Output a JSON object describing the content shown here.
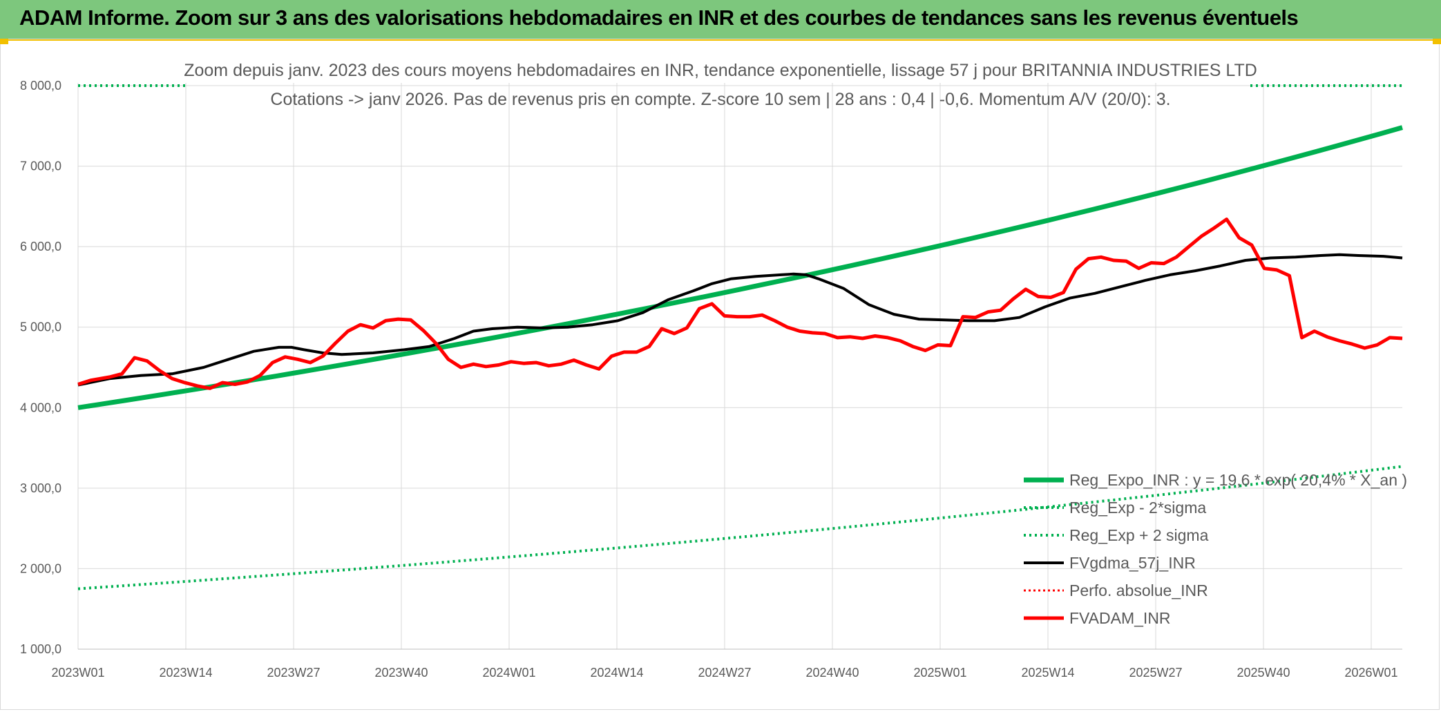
{
  "header": {
    "title": "ADAM Informe. Zoom sur 3 ans des valorisations hebdomadaires en INR et des courbes de tendances sans les revenus éventuels"
  },
  "colors": {
    "green": "#00b050",
    "red": "#ff0000",
    "black": "#000000",
    "banner": "#7dc77d",
    "accent": "#f2c000"
  },
  "chart_data": {
    "type": "line",
    "title_line1": "Zoom depuis janv. 2023 des cours moyens hebdomadaires en INR, tendance exponentielle, lissage 57 j pour BRITANNIA INDUSTRIES LTD",
    "title_line2": "Cotations -> janv 2026. Pas de revenus pris en compte. Z-score 10 sem | 28 ans : 0,4 | -0,6. Momentum A/V (20/0): 3.",
    "ylim": [
      1000,
      8000
    ],
    "yticks": [
      "8 000,0",
      "7 000,0",
      "6 000,0",
      "5 000,0",
      "4 000,0",
      "3 000,0",
      "2 000,0",
      "1 000,0"
    ],
    "ytick_values": [
      8000,
      7000,
      6000,
      5000,
      4000,
      3000,
      2000,
      1000
    ],
    "x_count": 162,
    "xticks": [
      "2023W01",
      "2023W14",
      "2023W27",
      "2023W40",
      "2024W01",
      "2024W14",
      "2024W27",
      "2024W40",
      "2025W01",
      "2025W14",
      "2025W27",
      "2025W40",
      "2026W01"
    ],
    "xtick_positions": [
      0,
      13,
      26,
      39,
      52,
      65,
      78,
      91,
      104,
      117,
      130,
      143,
      156
    ],
    "series": [
      {
        "name": "Reg_Expo_INR : y = 19,6 * exp( 20,4% * X_an )",
        "style": "solid-thick-green",
        "start": 4000,
        "end": 7480
      },
      {
        "name": "Reg_Exp - 2*sigma",
        "style": "dotted-green",
        "start": 8000,
        "end": 8000
      },
      {
        "name": "Reg_Exp + 2 sigma",
        "style": "dotted-green",
        "start": 1750,
        "end": 3270
      },
      {
        "name": "FVgdma_57j_INR",
        "style": "solid-black",
        "points": [
          [
            0,
            4280
          ],
          [
            5,
            4360
          ],
          [
            10,
            4400
          ],
          [
            15,
            4420
          ],
          [
            20,
            4500
          ],
          [
            24,
            4600
          ],
          [
            28,
            4700
          ],
          [
            32,
            4750
          ],
          [
            34,
            4750
          ],
          [
            36,
            4720
          ],
          [
            39,
            4680
          ],
          [
            42,
            4660
          ],
          [
            47,
            4680
          ],
          [
            52,
            4720
          ],
          [
            56,
            4760
          ],
          [
            60,
            4860
          ],
          [
            63,
            4950
          ],
          [
            66,
            4980
          ],
          [
            70,
            5000
          ],
          [
            74,
            4990
          ],
          [
            78,
            5000
          ],
          [
            82,
            5030
          ],
          [
            86,
            5080
          ],
          [
            90,
            5180
          ],
          [
            94,
            5340
          ],
          [
            98,
            5450
          ],
          [
            101,
            5540
          ],
          [
            104,
            5600
          ],
          [
            108,
            5630
          ],
          [
            112,
            5650
          ],
          [
            114,
            5660
          ],
          [
            116,
            5650
          ],
          [
            118,
            5600
          ],
          [
            122,
            5480
          ],
          [
            126,
            5280
          ],
          [
            130,
            5160
          ],
          [
            134,
            5100
          ],
          [
            138,
            5090
          ],
          [
            142,
            5080
          ],
          [
            146,
            5080
          ],
          [
            150,
            5120
          ],
          [
            154,
            5250
          ],
          [
            158,
            5360
          ],
          [
            162,
            5420
          ],
          [
            166,
            5500
          ],
          [
            170,
            5580
          ],
          [
            174,
            5650
          ],
          [
            178,
            5700
          ],
          [
            182,
            5760
          ],
          [
            186,
            5830
          ],
          [
            190,
            5860
          ],
          [
            194,
            5870
          ],
          [
            198,
            5890
          ],
          [
            201,
            5900
          ],
          [
            204,
            5890
          ],
          [
            208,
            5880
          ],
          [
            211,
            5860
          ]
        ]
      },
      {
        "name": "Perfo. absolue_INR",
        "style": "dotted-red",
        "start": null,
        "end": null
      },
      {
        "name": "FVADAM_INR",
        "style": "solid-red",
        "points": [
          [
            0,
            4290
          ],
          [
            2,
            4340
          ],
          [
            5,
            4380
          ],
          [
            7,
            4420
          ],
          [
            9,
            4620
          ],
          [
            11,
            4580
          ],
          [
            13,
            4460
          ],
          [
            15,
            4360
          ],
          [
            17,
            4310
          ],
          [
            19,
            4270
          ],
          [
            21,
            4240
          ],
          [
            23,
            4310
          ],
          [
            25,
            4290
          ],
          [
            27,
            4320
          ],
          [
            29,
            4400
          ],
          [
            31,
            4560
          ],
          [
            33,
            4630
          ],
          [
            35,
            4600
          ],
          [
            37,
            4560
          ],
          [
            39,
            4640
          ],
          [
            41,
            4800
          ],
          [
            43,
            4950
          ],
          [
            45,
            5030
          ],
          [
            47,
            4990
          ],
          [
            49,
            5080
          ],
          [
            51,
            5100
          ],
          [
            53,
            5090
          ],
          [
            55,
            4960
          ],
          [
            57,
            4800
          ],
          [
            59,
            4600
          ],
          [
            61,
            4500
          ],
          [
            63,
            4540
          ],
          [
            65,
            4510
          ],
          [
            67,
            4530
          ],
          [
            69,
            4570
          ],
          [
            71,
            4550
          ],
          [
            73,
            4560
          ],
          [
            75,
            4520
          ],
          [
            77,
            4540
          ],
          [
            79,
            4590
          ],
          [
            81,
            4530
          ],
          [
            83,
            4480
          ],
          [
            85,
            4640
          ],
          [
            87,
            4690
          ],
          [
            89,
            4690
          ],
          [
            91,
            4760
          ],
          [
            93,
            4980
          ],
          [
            95,
            4920
          ],
          [
            97,
            4990
          ],
          [
            99,
            5230
          ],
          [
            101,
            5290
          ],
          [
            103,
            5140
          ],
          [
            105,
            5130
          ],
          [
            107,
            5130
          ],
          [
            109,
            5150
          ],
          [
            111,
            5080
          ],
          [
            113,
            5000
          ],
          [
            115,
            4950
          ],
          [
            117,
            4930
          ],
          [
            119,
            4920
          ],
          [
            121,
            4870
          ],
          [
            123,
            4880
          ],
          [
            125,
            4860
          ],
          [
            127,
            4890
          ],
          [
            129,
            4870
          ],
          [
            131,
            4830
          ],
          [
            133,
            4760
          ],
          [
            135,
            4710
          ],
          [
            137,
            4780
          ],
          [
            139,
            4770
          ],
          [
            141,
            5130
          ],
          [
            143,
            5120
          ],
          [
            145,
            5190
          ],
          [
            147,
            5210
          ],
          [
            149,
            5350
          ],
          [
            151,
            5470
          ],
          [
            153,
            5380
          ],
          [
            155,
            5370
          ],
          [
            157,
            5430
          ],
          [
            159,
            5720
          ],
          [
            161,
            5850
          ],
          [
            163,
            5870
          ],
          [
            165,
            5830
          ],
          [
            167,
            5820
          ],
          [
            169,
            5730
          ],
          [
            171,
            5800
          ],
          [
            173,
            5790
          ],
          [
            175,
            5870
          ],
          [
            177,
            6000
          ],
          [
            179,
            6130
          ],
          [
            181,
            6230
          ],
          [
            183,
            6340
          ],
          [
            185,
            6110
          ],
          [
            187,
            6020
          ],
          [
            189,
            5730
          ],
          [
            191,
            5710
          ],
          [
            193,
            5640
          ],
          [
            195,
            4870
          ],
          [
            197,
            4950
          ],
          [
            199,
            4880
          ],
          [
            201,
            4830
          ],
          [
            203,
            4790
          ],
          [
            205,
            4740
          ],
          [
            207,
            4780
          ],
          [
            209,
            4870
          ],
          [
            211,
            4860
          ]
        ]
      }
    ]
  }
}
